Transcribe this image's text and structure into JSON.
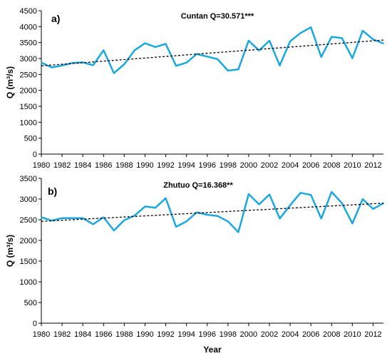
{
  "chart_data": [
    {
      "type": "line",
      "panel_label": "a)",
      "title": "Cuntan Q=30.571***",
      "ylabel": "Q (m³/s)",
      "xlabel": "",
      "ylim": [
        0,
        4500
      ],
      "yticks": [
        0,
        500,
        1000,
        1500,
        2000,
        2500,
        3000,
        3500,
        4000,
        4500
      ],
      "xlim": [
        1980,
        2013
      ],
      "xticks": [
        1980,
        1982,
        1984,
        1986,
        1988,
        1990,
        1992,
        1994,
        1996,
        1998,
        2000,
        2002,
        2004,
        2006,
        2008,
        2010,
        2012
      ],
      "color": "#1aa7e0",
      "trend_color": "#000000",
      "series": [
        {
          "x": [
            1980,
            1981,
            1982,
            1983,
            1984,
            1985,
            1986,
            1987,
            1988,
            1989,
            1990,
            1991,
            1992,
            1993,
            1994,
            1995,
            1996,
            1997,
            1998,
            1999,
            2000,
            2001,
            2002,
            2003,
            2004,
            2005,
            2006,
            2007,
            2008,
            2009,
            2010,
            2011,
            2012,
            2013
          ],
          "values": [
            2870,
            2720,
            2780,
            2860,
            2880,
            2790,
            3260,
            2540,
            2820,
            3260,
            3480,
            3360,
            3460,
            2770,
            2870,
            3140,
            3060,
            2980,
            2620,
            2660,
            3560,
            3250,
            3560,
            2780,
            3540,
            3800,
            3980,
            3050,
            3680,
            3640,
            3010,
            3870,
            3600,
            3470
          ]
        }
      ],
      "trend": {
        "x": [
          1980,
          2013
        ],
        "values": [
          2770,
          3580
        ]
      }
    },
    {
      "type": "line",
      "panel_label": "b)",
      "title": "Zhutuo Q=16.368**",
      "ylabel": "Q (m³/s)",
      "xlabel": "Year",
      "ylim": [
        0,
        3500
      ],
      "yticks": [
        0,
        500,
        1000,
        1500,
        2000,
        2500,
        3000,
        3500
      ],
      "xlim": [
        1980,
        2013
      ],
      "xticks": [
        1980,
        1982,
        1984,
        1986,
        1988,
        1990,
        1992,
        1994,
        1996,
        1998,
        2000,
        2002,
        2004,
        2006,
        2008,
        2010,
        2012
      ],
      "color": "#1aa7e0",
      "trend_color": "#000000",
      "series": [
        {
          "x": [
            1980,
            1981,
            1982,
            1983,
            1984,
            1985,
            1986,
            1987,
            1988,
            1989,
            1990,
            1991,
            1992,
            1993,
            1994,
            1995,
            1996,
            1997,
            1998,
            1999,
            2000,
            2001,
            2002,
            2003,
            2004,
            2005,
            2006,
            2007,
            2008,
            2009,
            2010,
            2011,
            2012,
            2013
          ],
          "values": [
            2560,
            2480,
            2540,
            2540,
            2540,
            2390,
            2560,
            2240,
            2490,
            2600,
            2820,
            2790,
            3020,
            2330,
            2460,
            2680,
            2620,
            2590,
            2460,
            2200,
            3120,
            2870,
            3110,
            2530,
            2850,
            3150,
            3100,
            2530,
            3170,
            2900,
            2410,
            3000,
            2760,
            2900
          ]
        }
      ],
      "trend": {
        "x": [
          1980,
          2013
        ],
        "values": [
          2460,
          2900
        ]
      }
    }
  ]
}
